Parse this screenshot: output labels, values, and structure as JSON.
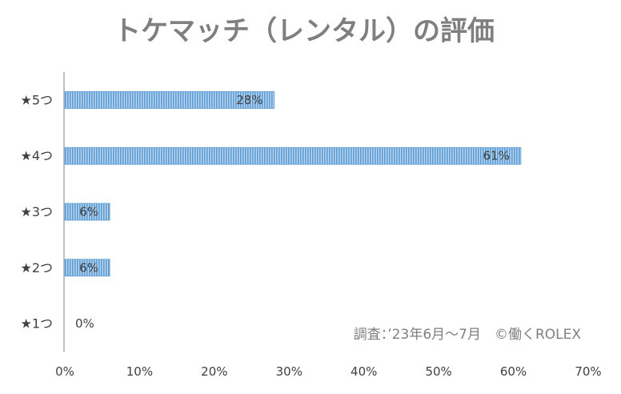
{
  "chart_data": {
    "type": "bar",
    "orientation": "horizontal",
    "title": "トケマッチ（レンタル）の評価",
    "categories": [
      "★5つ",
      "★4つ",
      "★3つ",
      "★2つ",
      "★1つ"
    ],
    "values": [
      28,
      61,
      6,
      6,
      0
    ],
    "data_labels": [
      "28%",
      "61%",
      "6%",
      "6%",
      "0%"
    ],
    "xlim": [
      0,
      70
    ],
    "x_ticks": [
      0,
      10,
      20,
      30,
      40,
      50,
      60,
      70
    ],
    "x_tick_labels": [
      "0%",
      "10%",
      "20%",
      "30%",
      "40%",
      "50%",
      "60%",
      "70%"
    ],
    "xlabel": "",
    "ylabel": "",
    "grid": false,
    "legend": "none",
    "bar_color": "#5b9bd5",
    "bar_fill_color": "#bdd7ee"
  },
  "note": "調査：’23年6月～7月　©働くROLEX"
}
